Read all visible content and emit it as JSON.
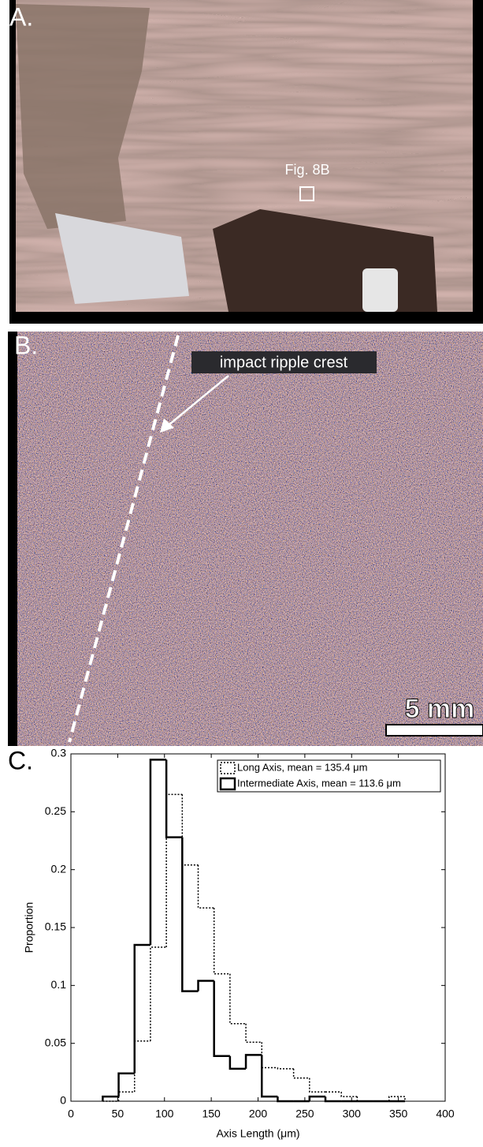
{
  "panel_a": {
    "label": "A.",
    "annotation": "Fig. 8B"
  },
  "panel_b": {
    "label": "B.",
    "annotation": "impact ripple crest",
    "scale_bar": "5 mm"
  },
  "chart_data": {
    "type": "histogram",
    "label": "C.",
    "x_label": "Axis Length (μm)",
    "y_label": "Proportion",
    "bins": [
      34,
      51,
      68,
      85,
      102,
      119,
      136,
      153,
      170,
      187,
      204,
      221,
      238,
      255,
      272,
      289,
      306,
      323,
      340,
      357
    ],
    "series": [
      {
        "name": "Long Axis, mean = 135.4 μm",
        "color": "#000000",
        "dash": true,
        "values": [
          0,
          0.008,
          0.052,
          0.133,
          0.265,
          0.204,
          0.167,
          0.11,
          0.067,
          0.051,
          0.029,
          0.028,
          0.02,
          0.008,
          0.008,
          0.004,
          0,
          0,
          0.004
        ]
      },
      {
        "name": "Intermediate Axis, mean = 113.6 μm",
        "color": "#000000",
        "dash": false,
        "values": [
          0.004,
          0.024,
          0.135,
          0.295,
          0.228,
          0.095,
          0.104,
          0.039,
          0.028,
          0.04,
          0.004,
          0,
          0,
          0.004,
          0,
          0,
          0,
          0,
          0
        ]
      }
    ],
    "xlim": [
      0,
      400
    ],
    "xticks": [
      0,
      50,
      100,
      150,
      200,
      250,
      300,
      350,
      400
    ],
    "ylim": [
      0,
      0.3
    ],
    "yticks": [
      0,
      0.05,
      0.1,
      0.15,
      0.2,
      0.25,
      0.3
    ],
    "legend": "upper right"
  }
}
